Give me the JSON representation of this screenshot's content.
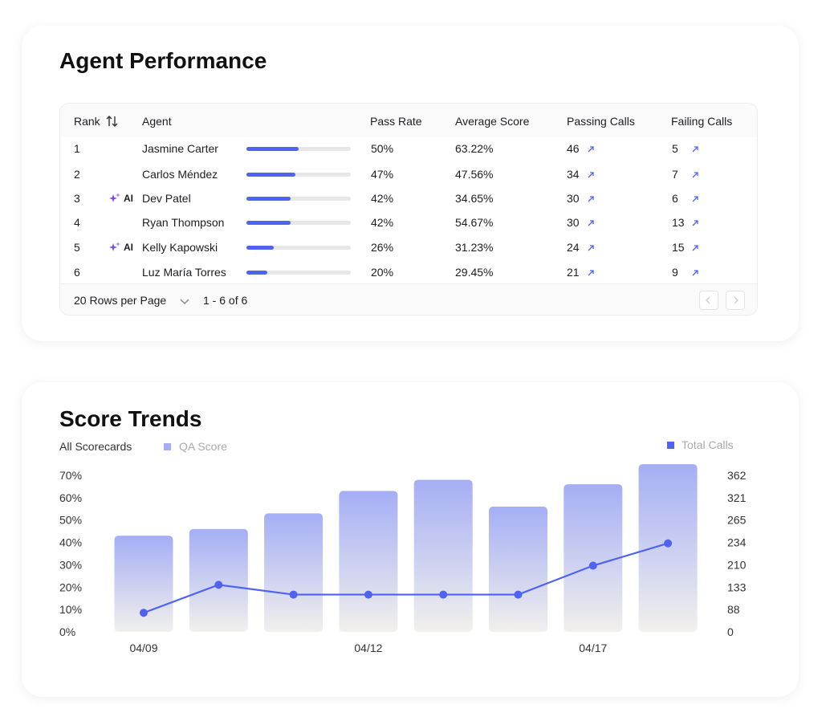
{
  "agent_performance": {
    "title": "Agent Performance",
    "columns": [
      "Rank",
      "Agent",
      "Pass Rate",
      "Average Score",
      "Passing Calls",
      "Failing Calls"
    ],
    "rows": [
      {
        "rank": "1",
        "agent": "Jasmine Carter",
        "pass_rate": 50,
        "pass_rate_label": "50%",
        "average_score": "63.22%",
        "passing_calls": 46,
        "failing_calls": 5
      },
      {
        "rank": "2",
        "agent": "Carlos Méndez",
        "pass_rate": 47,
        "pass_rate_label": "47%",
        "average_score": "47.56%",
        "passing_calls": 34,
        "failing_calls": 7
      },
      {
        "rank": "3",
        "badge": "AI",
        "agent": "Dev Patel",
        "pass_rate": 42,
        "pass_rate_label": "42%",
        "average_score": "34.65%",
        "passing_calls": 30,
        "failing_calls": 6
      },
      {
        "rank": "4",
        "agent": "Ryan Thompson",
        "pass_rate": 42,
        "pass_rate_label": "42%",
        "average_score": "54.67%",
        "passing_calls": 30,
        "failing_calls": 13
      },
      {
        "rank": "5",
        "badge": "AI",
        "agent": "Kelly Kapowski",
        "pass_rate": 26,
        "pass_rate_label": "26%",
        "average_score": "31.23%",
        "passing_calls": 24,
        "failing_calls": 15
      },
      {
        "rank": "6",
        "agent": "Luz María Torres",
        "pass_rate": 20,
        "pass_rate_label": "20%",
        "average_score": "29.45%",
        "passing_calls": 21,
        "failing_calls": 9
      }
    ],
    "footer": {
      "rows_per_page": "20 Rows per Page",
      "range": "1 - 6 of 6"
    }
  },
  "chart_data": {
    "type": "combo",
    "title": "Score Trends",
    "subtitle": "All Scorecards",
    "categories": [
      "04/09",
      null,
      null,
      "04/12",
      null,
      null,
      "04/17",
      null
    ],
    "series": [
      {
        "name": "QA Score",
        "type": "bar",
        "color": "#a5aef5",
        "values": [
          43,
          46,
          53,
          63,
          68,
          56,
          66,
          75
        ]
      },
      {
        "name": "Total Calls",
        "type": "line",
        "color": "#4f63f0",
        "axis": "y2",
        "values": [
          75,
          141,
          118,
          118,
          118,
          118,
          207,
          233
        ]
      }
    ],
    "ylim": [
      0,
      70
    ],
    "yticks": [
      {
        "value": 0,
        "label": "0%"
      },
      {
        "value": 10,
        "label": "10%"
      },
      {
        "value": 20,
        "label": "20%"
      },
      {
        "value": 30,
        "label": "30%"
      },
      {
        "value": 40,
        "label": "40%"
      },
      {
        "value": 50,
        "label": "50%"
      },
      {
        "value": 60,
        "label": "60%"
      },
      {
        "value": 70,
        "label": "70%"
      }
    ],
    "y2lim": [
      0,
      362
    ],
    "y2ticks": [
      0,
      88,
      133,
      210,
      234,
      265,
      321,
      362
    ]
  }
}
